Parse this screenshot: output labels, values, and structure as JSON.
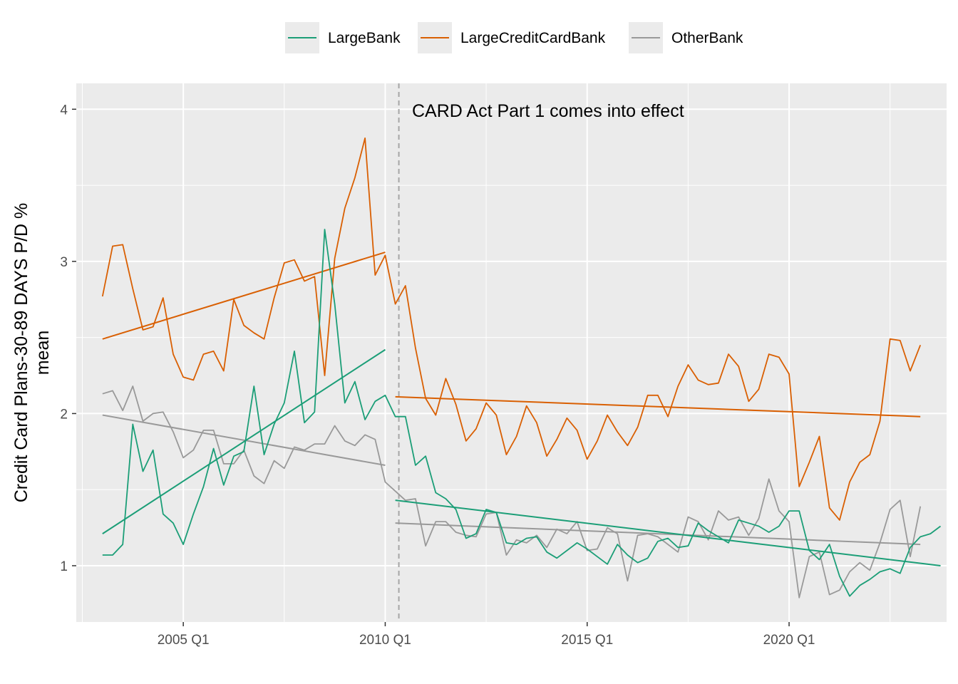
{
  "chart_data": {
    "type": "line",
    "title": "",
    "xlabel": "",
    "ylabel": [
      "Credit Card Plans-30-89 DAYS P/D %",
      "mean"
    ],
    "xlim": [
      "2002 Q3",
      "2023 Q4"
    ],
    "ylim": [
      0.63,
      4.17
    ],
    "x_ticks": [
      "2005 Q1",
      "2010 Q1",
      "2015 Q1",
      "2020 Q1"
    ],
    "y_ticks": [
      1,
      2,
      3,
      4
    ],
    "grid": true,
    "legend_position": "top",
    "annotation": {
      "text": "CARD Act Part 1 comes into effect",
      "at_x": "2010 Q2",
      "at_y": 4
    },
    "event_line": {
      "x": "2010 Q2",
      "style": "dashed"
    },
    "quarter_start": "2003 Q1",
    "series": [
      {
        "name": "LargeBank",
        "color": "#1B9E77",
        "values": [
          1.07,
          1.07,
          1.14,
          1.93,
          1.62,
          1.76,
          1.34,
          1.28,
          1.14,
          1.34,
          1.52,
          1.77,
          1.53,
          1.72,
          1.75,
          2.18,
          1.73,
          1.93,
          2.07,
          2.41,
          1.94,
          2.01,
          3.21,
          2.72,
          2.07,
          2.21,
          1.96,
          2.08,
          2.12,
          1.98,
          1.98,
          1.66,
          1.72,
          1.48,
          1.44,
          1.37,
          1.18,
          1.21,
          1.37,
          1.35,
          1.15,
          1.14,
          1.18,
          1.19,
          1.09,
          1.05,
          1.1,
          1.15,
          1.11,
          1.06,
          1.01,
          1.14,
          1.07,
          1.02,
          1.05,
          1.16,
          1.18,
          1.12,
          1.13,
          1.28,
          1.23,
          1.19,
          1.15,
          1.3,
          1.28,
          1.26,
          1.22,
          1.26,
          1.36,
          1.36,
          1.1,
          1.04,
          1.14,
          0.93,
          0.8,
          0.87,
          0.91,
          0.96,
          0.98,
          0.95,
          1.12,
          1.19,
          1.21,
          1.26
        ],
        "trend_pre": [
          1.21,
          2.42
        ],
        "trend_post": [
          1.43,
          1.0
        ]
      },
      {
        "name": "LargeCreditCardBank",
        "color": "#D95F02",
        "values": [
          2.77,
          3.1,
          3.11,
          2.82,
          2.55,
          2.57,
          2.76,
          2.39,
          2.24,
          2.22,
          2.39,
          2.41,
          2.28,
          2.75,
          2.58,
          2.53,
          2.49,
          2.76,
          2.99,
          3.01,
          2.87,
          2.9,
          2.25,
          3.02,
          3.35,
          3.55,
          3.81,
          2.91,
          3.04,
          2.72,
          2.84,
          2.43,
          2.1,
          1.99,
          2.23,
          2.06,
          1.82,
          1.9,
          2.07,
          1.99,
          1.73,
          1.85,
          2.05,
          1.94,
          1.72,
          1.83,
          1.97,
          1.89,
          1.7,
          1.82,
          1.99,
          1.88,
          1.79,
          1.91,
          2.12,
          2.12,
          1.98,
          2.18,
          2.32,
          2.22,
          2.19,
          2.2,
          2.39,
          2.31,
          2.08,
          2.16,
          2.39,
          2.37,
          2.26,
          1.52,
          1.68,
          1.85,
          1.38,
          1.3,
          1.55,
          1.68,
          1.73,
          1.95,
          2.49,
          2.48,
          2.28,
          2.45
        ],
        "trend_pre": [
          2.49,
          3.06
        ],
        "trend_post": [
          2.11,
          1.98
        ]
      },
      {
        "name": "OtherBank",
        "color": "#999999",
        "values": [
          2.13,
          2.15,
          2.02,
          2.18,
          1.95,
          2.0,
          2.01,
          1.88,
          1.71,
          1.76,
          1.89,
          1.89,
          1.67,
          1.67,
          1.76,
          1.59,
          1.54,
          1.69,
          1.64,
          1.78,
          1.76,
          1.8,
          1.8,
          1.92,
          1.82,
          1.79,
          1.86,
          1.83,
          1.55,
          1.49,
          1.43,
          1.44,
          1.13,
          1.29,
          1.29,
          1.22,
          1.2,
          1.19,
          1.34,
          1.35,
          1.07,
          1.17,
          1.15,
          1.2,
          1.12,
          1.24,
          1.21,
          1.29,
          1.1,
          1.11,
          1.25,
          1.21,
          0.9,
          1.2,
          1.21,
          1.19,
          1.14,
          1.09,
          1.32,
          1.29,
          1.17,
          1.36,
          1.3,
          1.32,
          1.2,
          1.31,
          1.57,
          1.36,
          1.29,
          0.79,
          1.06,
          1.09,
          0.81,
          0.84,
          0.96,
          1.02,
          0.97,
          1.15,
          1.37,
          1.43,
          1.06,
          1.39
        ],
        "trend_pre": [
          1.99,
          1.66
        ],
        "trend_post": [
          1.28,
          1.14
        ]
      }
    ]
  }
}
